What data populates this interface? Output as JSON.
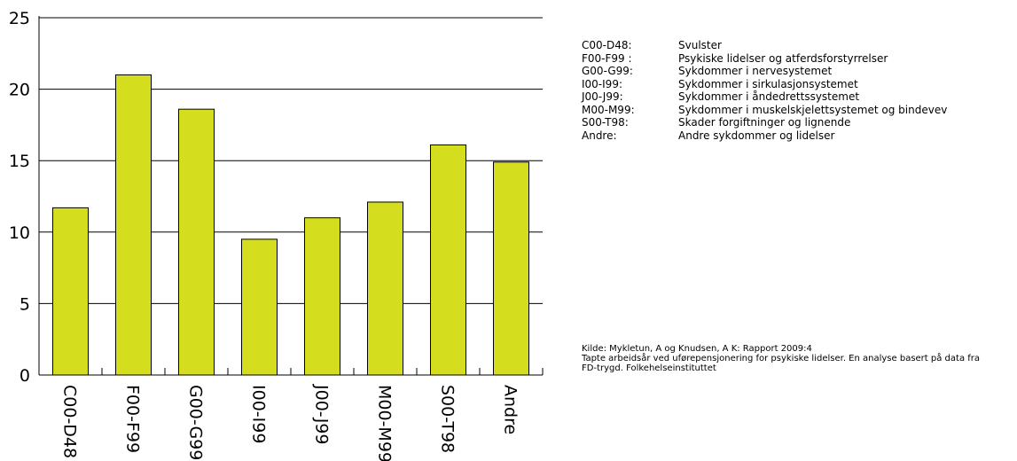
{
  "chart_data": {
    "type": "bar",
    "categories": [
      "C00-D48",
      "F00-F99",
      "G00-G99",
      "I00-I99",
      "J00-J99",
      "M00-M99",
      "S00-T98",
      "Andre"
    ],
    "values": [
      11.7,
      21.0,
      18.6,
      9.5,
      11.0,
      12.1,
      16.1,
      14.9
    ],
    "ylim": [
      0,
      25
    ],
    "yticks": [
      0,
      5,
      10,
      15,
      20,
      25
    ],
    "grid": "horizontal",
    "bar_color": "#d4dd1e",
    "tick_label_rotation": "90deg-clockwise"
  },
  "legend": [
    {
      "code": "C00-D48:",
      "label": "Svulster"
    },
    {
      "code": "F00-F99 :",
      "label": "Psykiske lidelser og atferdsforstyrrelser"
    },
    {
      "code": "G00-G99:",
      "label": "Sykdommer i nervesystemet"
    },
    {
      "code": "I00-I99:",
      "label": "Sykdommer i sirkulasjonsystemet"
    },
    {
      "code": "J00-J99:",
      "label": "Sykdommer i åndedrettssystemet"
    },
    {
      "code": "M00-M99:",
      "label": "Sykdommer i muskelskjelettsystemet og bindevev"
    },
    {
      "code": "S00-T98:",
      "label": "Skader forgiftninger og lignende"
    },
    {
      "code": "Andre:",
      "label": "Andre sykdommer og lidelser"
    }
  ],
  "source": {
    "line1": "Kilde: Mykletun, A og Knudsen, A K: Rapport 2009:4",
    "line2": "Tapte arbeidsår ved uførepensjonering for psykiske lidelser. En analyse basert på data fra",
    "line3": "FD-trygd. Folkehelseinstituttet"
  }
}
